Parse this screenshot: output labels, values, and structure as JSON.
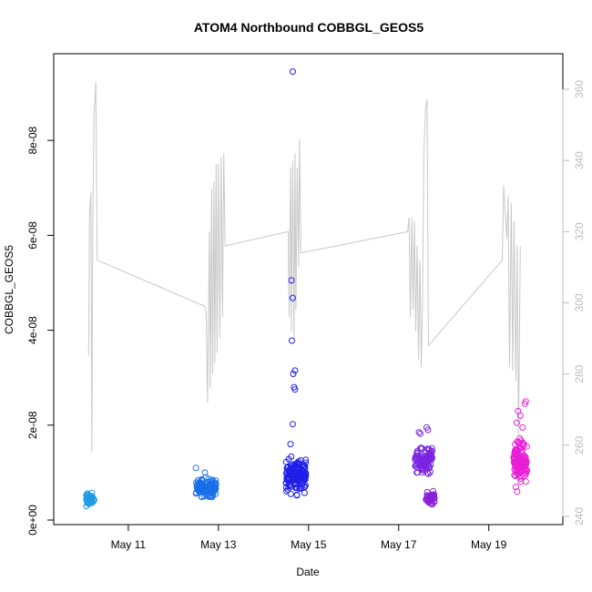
{
  "chart_data": {
    "type": "scatter",
    "title": "ATOM4 Northbound COBBGL_GEOS5",
    "xlabel": "Date",
    "ylabel": "COBBGL_GEOS5",
    "x_ticks": [
      {
        "label": "May 11",
        "value": 11
      },
      {
        "label": "May 13",
        "value": 13
      },
      {
        "label": "May 15",
        "value": 15
      },
      {
        "label": "May 17",
        "value": 17
      },
      {
        "label": "May 19",
        "value": 19
      }
    ],
    "xlim": [
      9.75,
      20.3
    ],
    "ylim": [
      0,
      9.5e-08
    ],
    "y_ticks": [
      {
        "label": "0e+00",
        "value": 0
      },
      {
        "label": "2e-08",
        "value": 2e-08
      },
      {
        "label": "4e-08",
        "value": 4e-08
      },
      {
        "label": "6e-08",
        "value": 6e-08
      },
      {
        "label": "8e-08",
        "value": 8e-08
      }
    ],
    "y2lim": [
      240,
      362
    ],
    "y2_ticks": [
      {
        "label": "240",
        "value": 240
      },
      {
        "label": "260",
        "value": 260
      },
      {
        "label": "280",
        "value": 280
      },
      {
        "label": "300",
        "value": 300
      },
      {
        "label": "320",
        "value": 320
      },
      {
        "label": "340",
        "value": 340
      },
      {
        "label": "360",
        "value": 360
      }
    ],
    "grid": false,
    "legend": "none",
    "line_color": "#c8c8c8",
    "flights": [
      {
        "color": "#1e9be6",
        "x_range": [
          10.05,
          10.25
        ],
        "y_range": [
          2.5e-09,
          6.2e-09
        ],
        "count": 45,
        "extra_points": []
      },
      {
        "color": "#1a6fe8",
        "x_range": [
          12.5,
          12.95
        ],
        "y_range": [
          4e-09,
          9.5e-09
        ],
        "count": 110,
        "extra_points": [
          [
            12.5,
            1.1e-08
          ],
          [
            12.7,
            1e-08
          ]
        ]
      },
      {
        "color": "#1f1fe6",
        "x_range": [
          14.5,
          14.95
        ],
        "y_range": [
          4.5e-09,
          1.45e-08
        ],
        "count": 150,
        "extra_points": [
          [
            14.65,
            9.45e-08
          ],
          [
            14.62,
            5.05e-08
          ],
          [
            14.65,
            4.68e-08
          ],
          [
            14.63,
            3.78e-08
          ],
          [
            14.7,
            3.15e-08
          ],
          [
            14.66,
            3.08e-08
          ],
          [
            14.68,
            2.8e-08
          ],
          [
            14.7,
            2.75e-08
          ],
          [
            14.65,
            2.02e-08
          ],
          [
            14.6,
            1.6e-08
          ]
        ]
      },
      {
        "color": "#7a24e0",
        "x_range": [
          17.35,
          17.75
        ],
        "y_range": [
          9e-09,
          1.65e-08
        ],
        "count": 95,
        "extra_points": [
          [
            17.45,
            1.85e-08
          ],
          [
            17.48,
            1.82e-08
          ],
          [
            17.62,
            1.95e-08
          ],
          [
            17.65,
            1.9e-08
          ]
        ]
      },
      {
        "color": "#8a1fd8",
        "x_range": [
          17.6,
          17.8
        ],
        "y_range": [
          2.8e-09,
          6.5e-09
        ],
        "count": 40,
        "extra_points": []
      },
      {
        "color": "#e81ed6",
        "x_range": [
          19.55,
          19.85
        ],
        "y_range": [
          6.5e-09,
          1.8e-08
        ],
        "count": 120,
        "extra_points": [
          [
            19.65,
            2.3e-08
          ],
          [
            19.7,
            2.2e-08
          ],
          [
            19.62,
            2.05e-08
          ],
          [
            19.82,
            2.5e-08
          ],
          [
            19.8,
            2.45e-08
          ],
          [
            19.75,
            1.95e-08
          ],
          [
            19.6,
            7e-09
          ],
          [
            19.63,
            6e-09
          ]
        ]
      }
    ],
    "temperature_series": [
      [
        10.12,
        285
      ],
      [
        10.14,
        325
      ],
      [
        10.17,
        331
      ],
      [
        10.19,
        258
      ],
      [
        10.21,
        320
      ],
      [
        10.24,
        352
      ],
      [
        10.28,
        362
      ],
      [
        10.31,
        312
      ],
      [
        12.7,
        299
      ],
      [
        12.73,
        297
      ],
      [
        12.76,
        272
      ],
      [
        12.8,
        320
      ],
      [
        12.82,
        276
      ],
      [
        12.85,
        332
      ],
      [
        12.87,
        280
      ],
      [
        12.9,
        334
      ],
      [
        12.92,
        283
      ],
      [
        12.95,
        339
      ],
      [
        12.97,
        286
      ],
      [
        13.0,
        339
      ],
      [
        13.03,
        290
      ],
      [
        13.06,
        341
      ],
      [
        13.09,
        296
      ],
      [
        13.12,
        342
      ],
      [
        13.15,
        316
      ],
      [
        14.55,
        320
      ],
      [
        14.57,
        296
      ],
      [
        14.6,
        338
      ],
      [
        14.62,
        292
      ],
      [
        14.65,
        340
      ],
      [
        14.68,
        290
      ],
      [
        14.7,
        342
      ],
      [
        14.72,
        298
      ],
      [
        14.75,
        338
      ],
      [
        14.78,
        310
      ],
      [
        14.8,
        346
      ],
      [
        14.83,
        314
      ],
      [
        17.2,
        320
      ],
      [
        17.23,
        324
      ],
      [
        17.26,
        296
      ],
      [
        17.29,
        324
      ],
      [
        17.32,
        298
      ],
      [
        17.35,
        323
      ],
      [
        17.38,
        292
      ],
      [
        17.41,
        316
      ],
      [
        17.44,
        284
      ],
      [
        17.47,
        312
      ],
      [
        17.5,
        282
      ],
      [
        17.53,
        300
      ],
      [
        17.56,
        342
      ],
      [
        17.6,
        355
      ],
      [
        17.63,
        357
      ],
      [
        17.66,
        288
      ],
      [
        19.3,
        312
      ],
      [
        19.33,
        333
      ],
      [
        19.37,
        324
      ],
      [
        19.4,
        318
      ],
      [
        19.43,
        330
      ],
      [
        19.46,
        282
      ],
      [
        19.5,
        328
      ],
      [
        19.53,
        281
      ],
      [
        19.56,
        323
      ],
      [
        19.6,
        278
      ],
      [
        19.63,
        316
      ],
      [
        19.66,
        263
      ],
      [
        19.7,
        316
      ]
    ]
  }
}
